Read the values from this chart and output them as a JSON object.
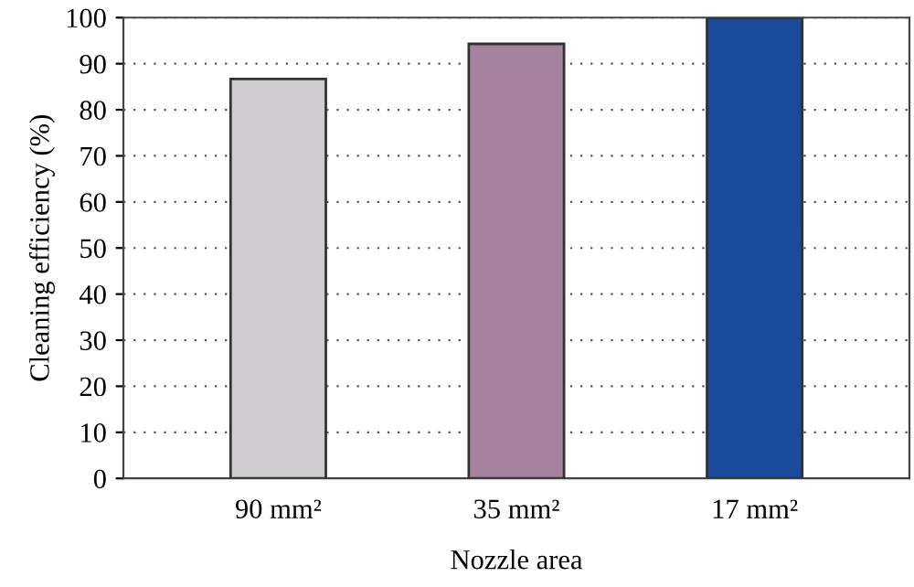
{
  "chart_data": {
    "type": "bar",
    "xlabel": "Nozzle area",
    "ylabel": "Cleaning efficiency (%)",
    "categories": [
      "90 mm²",
      "35 mm²",
      "17 mm²"
    ],
    "values": [
      86.7,
      94.3,
      100
    ],
    "colors": [
      "#cfcdcf",
      "#a6829f",
      "#194a9b"
    ],
    "ylim": [
      0,
      100
    ],
    "yticks": [
      0,
      10,
      20,
      30,
      40,
      50,
      60,
      70,
      80,
      90,
      100
    ],
    "grid": "y"
  }
}
